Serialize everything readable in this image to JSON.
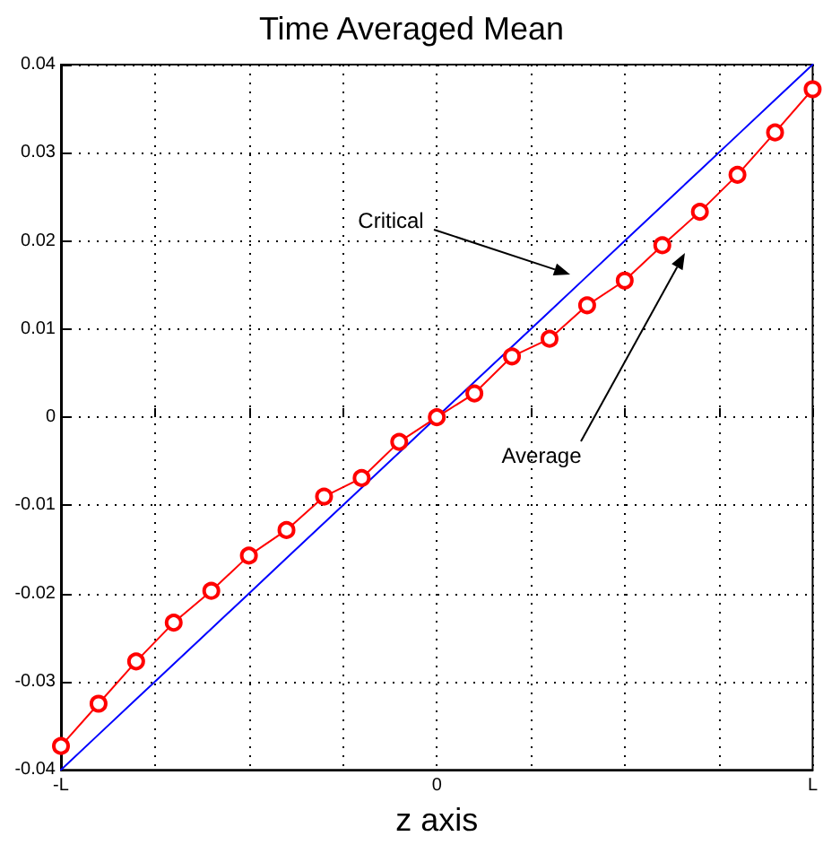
{
  "chart_data": {
    "type": "line",
    "title": "Time Averaged Mean",
    "xlabel": "z axis",
    "categories": [
      "-L",
      null,
      null,
      null,
      null,
      null,
      null,
      null,
      null,
      null,
      "0",
      null,
      null,
      null,
      null,
      null,
      null,
      null,
      null,
      null,
      "L"
    ],
    "ylim": [
      -0.04,
      0.04
    ],
    "yticks": [
      -0.04,
      -0.03,
      -0.02,
      -0.01,
      0,
      0.01,
      0.02,
      0.03,
      0.04
    ],
    "grid": true,
    "line_style": "solid",
    "series": [
      {
        "color": "#0000ff",
        "marker": "none",
        "values": [
          -0.04,
          -0.036,
          -0.032,
          -0.028,
          -0.024,
          -0.02,
          -0.016,
          -0.012,
          -0.008,
          -0.004,
          0,
          0.004,
          0.008,
          0.012,
          0.016,
          0.02,
          0.024,
          0.028,
          0.032,
          0.036,
          0.04
        ]
      },
      {
        "color": "#ff0000",
        "marker": "circle",
        "values": [
          -0.0373,
          -0.0325,
          -0.0277,
          -0.0233,
          -0.0197,
          -0.0157,
          -0.0128,
          -0.009,
          -0.0069,
          -0.0028,
          0,
          0.0027,
          0.0069,
          0.0089,
          0.0127,
          0.0155,
          0.0195,
          0.0233,
          0.0275,
          0.0323,
          0.0372
        ]
      }
    ],
    "annotations": [
      "Critical",
      "Average"
    ]
  }
}
